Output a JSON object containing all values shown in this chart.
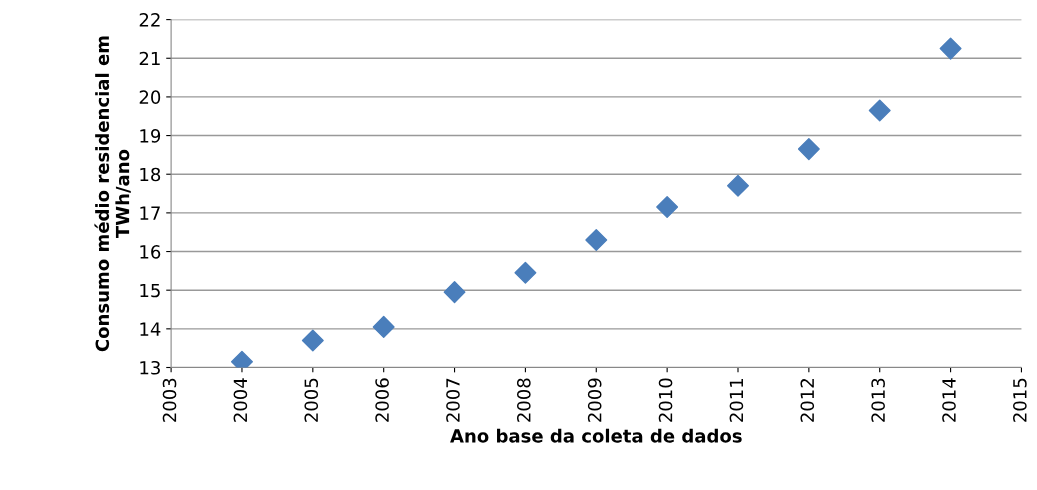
{
  "chart_data": {
    "type": "scatter",
    "xlabel": "Ano base da coleta de dados",
    "ylabel": "Consumo médio residencial em\nTWh/ano",
    "x": [
      2004,
      2005,
      2006,
      2007,
      2008,
      2009,
      2010,
      2011,
      2012,
      2013,
      2014
    ],
    "series": [
      {
        "color": "#4a7ebb",
        "values": [
          13.15,
          13.7,
          14.05,
          14.95,
          15.45,
          16.3,
          17.15,
          17.7,
          18.65,
          19.65,
          21.25
        ]
      }
    ],
    "xlim": [
      2003,
      2015
    ],
    "xticks": [
      2003,
      2004,
      2005,
      2006,
      2007,
      2008,
      2009,
      2010,
      2011,
      2012,
      2013,
      2014,
      2015
    ],
    "ylim": [
      13,
      22
    ],
    "yticks": [
      13,
      14,
      15,
      16,
      17,
      18,
      19,
      20,
      21,
      22
    ],
    "grid": "y",
    "legend": false,
    "marker": "diamond"
  }
}
